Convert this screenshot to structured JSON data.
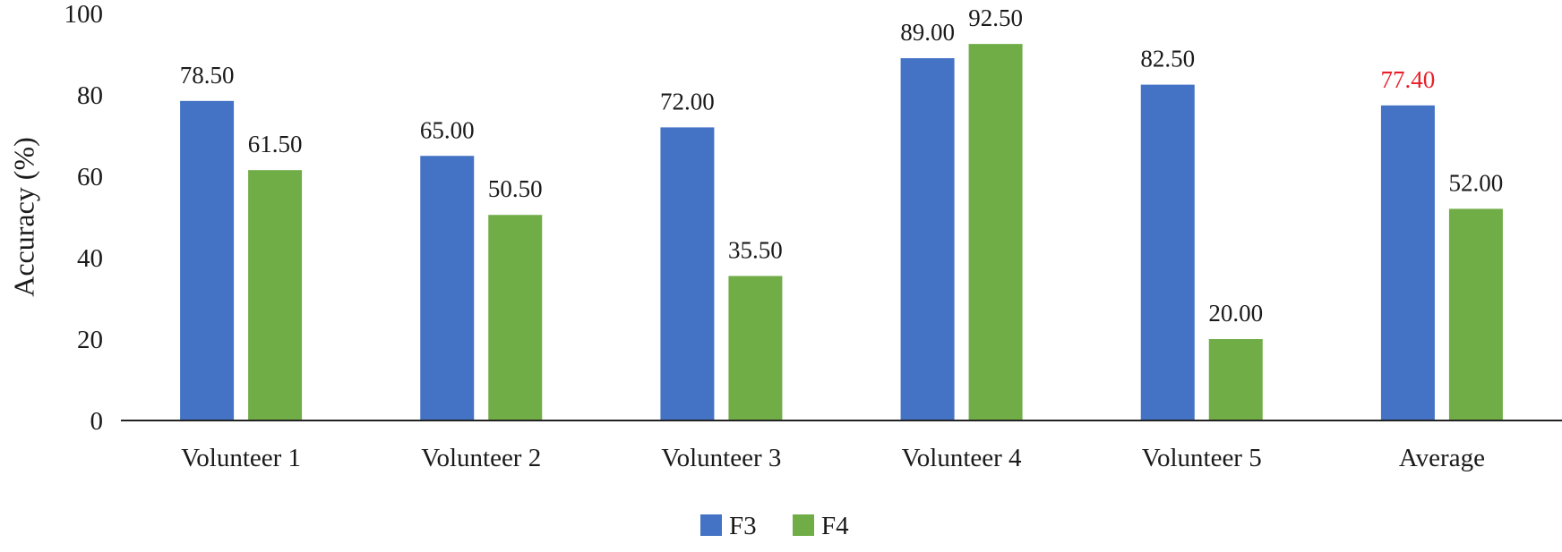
{
  "chart_data": {
    "type": "bar",
    "title": "",
    "xlabel": "",
    "ylabel": "Accuracy (%)",
    "ylim": [
      0,
      100
    ],
    "yticks": [
      0,
      20,
      40,
      60,
      80,
      100
    ],
    "grid": false,
    "legend_position": "bottom-center",
    "categories": [
      "Volunteer 1",
      "Volunteer 2",
      "Volunteer 3",
      "Volunteer 4",
      "Volunteer 5",
      "Average"
    ],
    "series": [
      {
        "name": "F3",
        "color": "#4472C4",
        "values": [
          78.5,
          65.0,
          72.0,
          89.0,
          82.5,
          77.4
        ],
        "labels": [
          "78.50",
          "65.00",
          "72.00",
          "89.00",
          "82.50",
          "77.40"
        ],
        "label_colors": [
          "#1a1a1a",
          "#1a1a1a",
          "#1a1a1a",
          "#1a1a1a",
          "#1a1a1a",
          "#E8202A"
        ]
      },
      {
        "name": "F4",
        "color": "#70AD47",
        "values": [
          61.5,
          50.5,
          35.5,
          92.5,
          20.0,
          52.0
        ],
        "labels": [
          "61.50",
          "50.50",
          "35.50",
          "92.50",
          "20.00",
          "52.00"
        ],
        "label_colors": [
          "#1a1a1a",
          "#1a1a1a",
          "#1a1a1a",
          "#1a1a1a",
          "#1a1a1a",
          "#1a1a1a"
        ]
      }
    ]
  }
}
